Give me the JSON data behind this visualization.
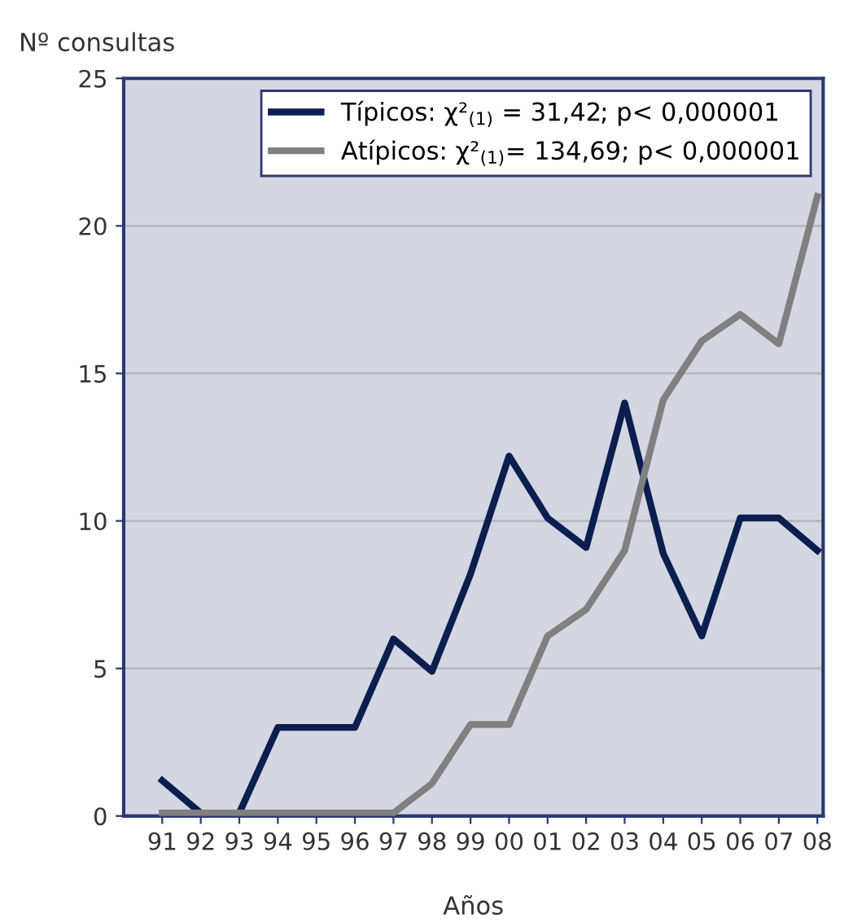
{
  "chart_data": {
    "type": "line",
    "xlabel": "Años",
    "ylabel": "Nº consultas",
    "categories": [
      "91",
      "92",
      "93",
      "94",
      "95",
      "96",
      "97",
      "98",
      "99",
      "00",
      "01",
      "02",
      "03",
      "04",
      "05",
      "06",
      "07",
      "08"
    ],
    "series": [
      {
        "name": "Típicos: χ²$_{(1)}$ = 31,42; p< 0,000001",
        "color": "#0a1f4f",
        "values": [
          1.2,
          0.1,
          0.1,
          3,
          3,
          3,
          6,
          4.9,
          8.2,
          12.2,
          10.1,
          9.1,
          14,
          8.9,
          6.1,
          10.1,
          10.1,
          9
        ]
      },
      {
        "name": "Atípicos: χ²$_{(1)}$= 134,69; p< 0,000001",
        "color": "#808080",
        "values": [
          0.1,
          0.1,
          0.1,
          0.1,
          0.1,
          0.1,
          0.1,
          1.1,
          3.1,
          3.1,
          6.1,
          7,
          9,
          14.1,
          16.1,
          17,
          16,
          21
        ]
      }
    ],
    "ylim": [
      0,
      25
    ],
    "yticks": [
      0,
      5,
      10,
      15,
      20,
      25
    ],
    "grid": "y",
    "legend": "top right",
    "marker": "none",
    "line_style": "solid"
  }
}
